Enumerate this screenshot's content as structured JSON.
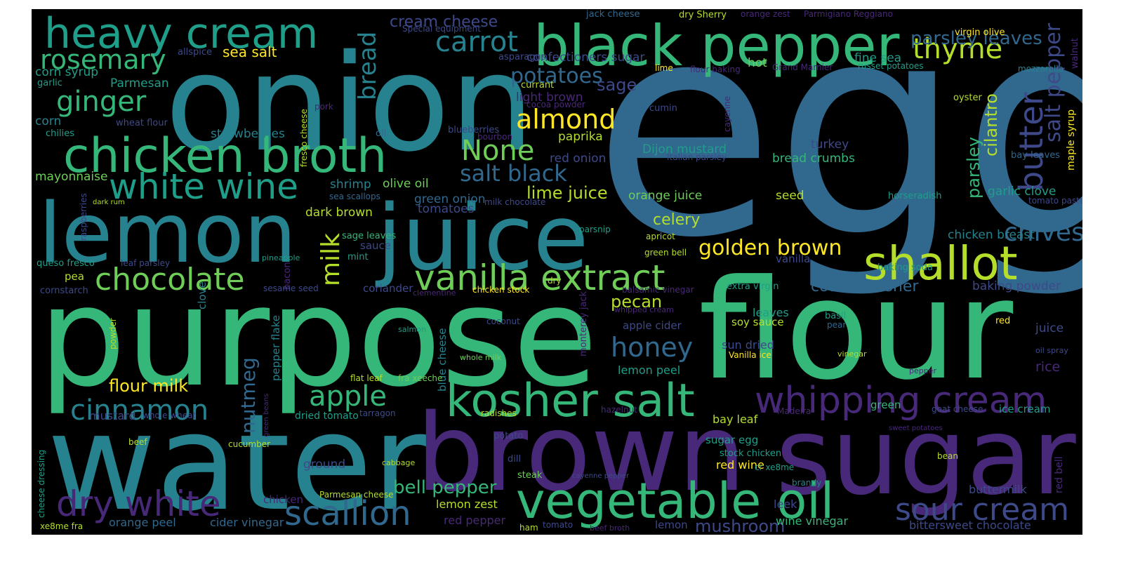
{
  "palette": {
    "background": "#000000",
    "colors": [
      "#440154",
      "#482878",
      "#3e4989",
      "#31688e",
      "#26828e",
      "#1f9e89",
      "#35b779",
      "#6ece58",
      "#b5de2b",
      "#fde725"
    ]
  },
  "words": [
    {
      "text": "egg",
      "color": "#31688e"
    },
    {
      "text": "onion",
      "color": "#26828e"
    },
    {
      "text": "purpose",
      "color": "#35b779"
    },
    {
      "text": "flour",
      "color": "#35b779"
    },
    {
      "text": "water",
      "color": "#26828e"
    },
    {
      "text": "lemon",
      "color": "#26828e"
    },
    {
      "text": "juice",
      "color": "#26828e"
    },
    {
      "text": "brown",
      "color": "#482878"
    },
    {
      "text": "sugar",
      "color": "#482878"
    },
    {
      "text": "black pepper",
      "color": "#35b779"
    },
    {
      "text": "heavy cream",
      "color": "#1f9e89"
    },
    {
      "text": "chicken broth",
      "color": "#35b779"
    },
    {
      "text": "vegetable oil",
      "color": "#35b779"
    },
    {
      "text": "kosher salt",
      "color": "#35b779"
    },
    {
      "text": "whipping cream",
      "color": "#482878"
    },
    {
      "text": "vanilla extract",
      "color": "#6ece58"
    },
    {
      "text": "white wine",
      "color": "#1f9e89"
    },
    {
      "text": "dry white",
      "color": "#482878"
    },
    {
      "text": "shallot",
      "color": "#b5de2b"
    },
    {
      "text": "chocolate",
      "color": "#6ece58"
    },
    {
      "text": "scallion",
      "color": "#31688e"
    },
    {
      "text": "sour cream",
      "color": "#3e4989"
    },
    {
      "text": "butter",
      "color": "#3e4989"
    },
    {
      "text": "rosemary",
      "color": "#35b779"
    },
    {
      "text": "ginger",
      "color": "#35b779"
    },
    {
      "text": "carrot",
      "color": "#26828e"
    },
    {
      "text": "thyme",
      "color": "#b5de2b"
    },
    {
      "text": "almond",
      "color": "#fde725"
    },
    {
      "text": "None",
      "color": "#6ece58"
    },
    {
      "text": "cinnamon",
      "color": "#26828e"
    },
    {
      "text": "apple",
      "color": "#35b779"
    },
    {
      "text": "honey",
      "color": "#31688e"
    },
    {
      "text": "chives",
      "color": "#31688e"
    },
    {
      "text": "golden brown",
      "color": "#fde725"
    },
    {
      "text": "salt black",
      "color": "#31688e"
    },
    {
      "text": "potatoes",
      "color": "#31688e"
    },
    {
      "text": "bread",
      "color": "#26828e"
    },
    {
      "text": "milk",
      "color": "#b5de2b"
    },
    {
      "text": "nutmeg",
      "color": "#31688e"
    },
    {
      "text": "salt pepper",
      "color": "#3e4989"
    },
    {
      "text": "cilantro",
      "color": "#b5de2b"
    },
    {
      "text": "parsley",
      "color": "#35b779"
    },
    {
      "text": "parsley leaves",
      "color": "#31688e"
    },
    {
      "text": "cream cheese",
      "color": "#3e4989"
    },
    {
      "text": "bell pepper",
      "color": "#35b779"
    },
    {
      "text": "flour milk",
      "color": "#fde725"
    },
    {
      "text": "mushroom",
      "color": "#3e4989"
    },
    {
      "text": "lime juice",
      "color": "#b5de2b"
    },
    {
      "text": "coarse kosher",
      "color": "#31688e"
    },
    {
      "text": "celery",
      "color": "#b5de2b"
    },
    {
      "text": "pecan",
      "color": "#b5de2b"
    },
    {
      "text": "sea salt",
      "color": "#fde725"
    },
    {
      "text": "sage",
      "color": "#3e4989"
    },
    {
      "text": "paprika",
      "color": "#b5de2b"
    },
    {
      "text": "light brown",
      "color": "#482878"
    },
    {
      "text": "red onion",
      "color": "#3e4989"
    },
    {
      "text": "Dijon mustard",
      "color": "#1f9e89"
    },
    {
      "text": "bread crumbs",
      "color": "#35b779"
    },
    {
      "text": "turkey",
      "color": "#3e4989"
    },
    {
      "text": "olive oil",
      "color": "#6ece58"
    },
    {
      "text": "green onion",
      "color": "#31688e"
    },
    {
      "text": "tomatoes",
      "color": "#3e4989"
    },
    {
      "text": "shrimp",
      "color": "#26828e"
    },
    {
      "text": "orange juice",
      "color": "#6ece58"
    },
    {
      "text": "seed",
      "color": "#b5de2b"
    },
    {
      "text": "chicken breast",
      "color": "#26828e"
    },
    {
      "text": "garlic clove",
      "color": "#1f9e89"
    },
    {
      "text": "baking powder",
      "color": "#3e4989"
    },
    {
      "text": "dark brown",
      "color": "#b5de2b"
    },
    {
      "text": "mayonnaise",
      "color": "#6ece58"
    },
    {
      "text": "strawberries",
      "color": "#26828e"
    },
    {
      "text": "confectioners sugar",
      "color": "#3e4989"
    },
    {
      "text": "asparagus",
      "color": "#3e4989"
    },
    {
      "text": "fine sea",
      "color": "#1f9e89"
    },
    {
      "text": "hot",
      "color": "#6ece58"
    },
    {
      "text": "lime",
      "color": "#fde725"
    },
    {
      "text": "flour baking",
      "color": "#482878"
    },
    {
      "text": "corn syrup",
      "color": "#1f9e89"
    },
    {
      "text": "corn",
      "color": "#26828e"
    },
    {
      "text": "Parmesan",
      "color": "#1f9e89"
    },
    {
      "text": "allspice",
      "color": "#3e4989"
    },
    {
      "text": "garlic",
      "color": "#1f9e89"
    },
    {
      "text": "wheat flour",
      "color": "#3e4989"
    },
    {
      "text": "chilies",
      "color": "#1f9e89"
    },
    {
      "text": "pork",
      "color": "#482878"
    },
    {
      "text": "fresco cheese",
      "color": "#b5de2b"
    },
    {
      "text": "currant",
      "color": "#b5de2b"
    },
    {
      "text": "cocoa powder",
      "color": "#482878"
    },
    {
      "text": "cumin",
      "color": "#3e4989"
    },
    {
      "text": "cayenne",
      "color": "#482878"
    },
    {
      "text": "oil",
      "color": "#31688e"
    },
    {
      "text": "blueberries",
      "color": "#3e4989"
    },
    {
      "text": "bourbon",
      "color": "#482878"
    },
    {
      "text": "jack cheese",
      "color": "#31688e"
    },
    {
      "text": "dry Sherry",
      "color": "#b5de2b"
    },
    {
      "text": "orange zest",
      "color": "#482878"
    },
    {
      "text": "Parmigiano Reggiano",
      "color": "#482878"
    },
    {
      "text": "Special equipment",
      "color": "#3e4989"
    },
    {
      "text": "virgin olive",
      "color": "#fde725"
    },
    {
      "text": "walnut",
      "color": "#482878"
    },
    {
      "text": "russet potatoes",
      "color": "#1f9e89"
    },
    {
      "text": "Grand Marnier",
      "color": "#482878"
    },
    {
      "text": "mozzarella",
      "color": "#26828e"
    },
    {
      "text": "oyster",
      "color": "#b5de2b"
    },
    {
      "text": "maple syrup",
      "color": "#fde725"
    },
    {
      "text": "bay leaves",
      "color": "#31688e"
    },
    {
      "text": "Italian parsley",
      "color": "#3e4989"
    },
    {
      "text": "horseradish",
      "color": "#1f9e89"
    },
    {
      "text": "tomato paste",
      "color": "#3e4989"
    },
    {
      "text": "raspberries",
      "color": "#3e4989"
    },
    {
      "text": "dark rum",
      "color": "#b5de2b"
    },
    {
      "text": "sea scallops",
      "color": "#31688e"
    },
    {
      "text": "milk chocolate",
      "color": "#3e4989"
    },
    {
      "text": "sage leaves",
      "color": "#35b779"
    },
    {
      "text": "sauce",
      "color": "#3e4989"
    },
    {
      "text": "mint",
      "color": "#1f9e89"
    },
    {
      "text": "parsnip",
      "color": "#1f9e89"
    },
    {
      "text": "apricot",
      "color": "#b5de2b"
    },
    {
      "text": "green bell",
      "color": "#b5de2b"
    },
    {
      "text": "vanilla",
      "color": "#3e4989"
    },
    {
      "text": "queso fresco",
      "color": "#1f9e89"
    },
    {
      "text": "leaf parsley",
      "color": "#3e4989"
    },
    {
      "text": "pea",
      "color": "#b5de2b"
    },
    {
      "text": "pineapple",
      "color": "#1f9e89"
    },
    {
      "text": "bacon",
      "color": "#482878"
    },
    {
      "text": "cornstarch",
      "color": "#3e4989"
    },
    {
      "text": "sesame seed",
      "color": "#3e4989"
    },
    {
      "text": "coriander",
      "color": "#3e4989"
    },
    {
      "text": "clementine",
      "color": "#482878"
    },
    {
      "text": "chicken stock",
      "color": "#fde725"
    },
    {
      "text": "dry",
      "color": "#b5de2b"
    },
    {
      "text": "balsamic vinegar",
      "color": "#482878"
    },
    {
      "text": "extra virgin",
      "color": "#1f9e89"
    },
    {
      "text": "baking soda",
      "color": "#1f9e89"
    },
    {
      "text": "clove",
      "color": "#26828e"
    },
    {
      "text": "pepper flake",
      "color": "#26828e"
    },
    {
      "text": "whipped cream",
      "color": "#482878"
    },
    {
      "text": "monterey jack",
      "color": "#482878"
    },
    {
      "text": "apple cider",
      "color": "#3e4989"
    },
    {
      "text": "leaves",
      "color": "#1f9e89"
    },
    {
      "text": "soy sauce",
      "color": "#b5de2b"
    },
    {
      "text": "basil",
      "color": "#1f9e89"
    },
    {
      "text": "pear",
      "color": "#31688e"
    },
    {
      "text": "red",
      "color": "#fde725"
    },
    {
      "text": "juice",
      "color": "#3e4989"
    },
    {
      "text": "powder",
      "color": "#b5de2b"
    },
    {
      "text": "salmon",
      "color": "#1f9e89"
    },
    {
      "text": "coconut",
      "color": "#3e4989"
    },
    {
      "text": "blue cheese",
      "color": "#26828e"
    },
    {
      "text": "sun dried",
      "color": "#3e4989"
    },
    {
      "text": "Vanilla ice",
      "color": "#fde725"
    },
    {
      "text": "vinegar",
      "color": "#b5de2b"
    },
    {
      "text": "oil spray",
      "color": "#3e4989"
    },
    {
      "text": "lemon peel",
      "color": "#1f9e89"
    },
    {
      "text": "pepper",
      "color": "#482878"
    },
    {
      "text": "rice",
      "color": "#482878"
    },
    {
      "text": "flat leaf",
      "color": "#b5de2b"
    },
    {
      "text": "fra xeeche",
      "color": "#6ece58"
    },
    {
      "text": "whole milk",
      "color": "#6ece58"
    },
    {
      "text": "mustard",
      "color": "#3e4989"
    },
    {
      "text": "green beans",
      "color": "#482878"
    },
    {
      "text": "whole wheat",
      "color": "#3e4989"
    },
    {
      "text": "dried tomato",
      "color": "#1f9e89"
    },
    {
      "text": "tarragon",
      "color": "#3e4989"
    },
    {
      "text": "radishes",
      "color": "#b5de2b"
    },
    {
      "text": "hazelnut",
      "color": "#482878"
    },
    {
      "text": "Madeira",
      "color": "#482878"
    },
    {
      "text": "green",
      "color": "#35b779"
    },
    {
      "text": "goat cheese",
      "color": "#3e4989"
    },
    {
      "text": "ice cream",
      "color": "#1f9e89"
    },
    {
      "text": "sweet potatoes",
      "color": "#482878"
    },
    {
      "text": "bay leaf",
      "color": "#b5de2b"
    },
    {
      "text": "sugar egg",
      "color": "#1f9e89"
    },
    {
      "text": "stock chicken",
      "color": "#1f9e89"
    },
    {
      "text": "red wine",
      "color": "#fde725"
    },
    {
      "text": "cr xe8me",
      "color": "#1f9e89"
    },
    {
      "text": "brandy",
      "color": "#26828e"
    },
    {
      "text": "bean",
      "color": "#b5de2b"
    },
    {
      "text": "red bell",
      "color": "#482878"
    },
    {
      "text": "buttermilk",
      "color": "#3e4989"
    },
    {
      "text": "beef",
      "color": "#b5de2b"
    },
    {
      "text": "cucumber",
      "color": "#b5de2b"
    },
    {
      "text": "cheese dressing",
      "color": "#1f9e89"
    },
    {
      "text": "chicken",
      "color": "#482878"
    },
    {
      "text": "Parmesan cheese",
      "color": "#b5de2b"
    },
    {
      "text": "potato",
      "color": "#3e4989"
    },
    {
      "text": "dill",
      "color": "#3e4989"
    },
    {
      "text": "steak",
      "color": "#6ece58"
    },
    {
      "text": "cayenne pepper",
      "color": "#3e4989"
    },
    {
      "text": "cabbage",
      "color": "#b5de2b"
    },
    {
      "text": "ground",
      "color": "#3e4989"
    },
    {
      "text": "lemon zest",
      "color": "#b5de2b"
    },
    {
      "text": "red pepper",
      "color": "#482878"
    },
    {
      "text": "leek",
      "color": "#3e4989"
    },
    {
      "text": "wine vinegar",
      "color": "#35b779"
    },
    {
      "text": "lemon",
      "color": "#3e4989"
    },
    {
      "text": "orange peel",
      "color": "#31688e"
    },
    {
      "text": "cider vinegar",
      "color": "#31688e"
    },
    {
      "text": "xe8me fra",
      "color": "#b5de2b"
    },
    {
      "text": "ham",
      "color": "#b5de2b"
    },
    {
      "text": "tomato",
      "color": "#3e4989"
    },
    {
      "text": "beef broth",
      "color": "#482878"
    },
    {
      "text": "bittersweet chocolate",
      "color": "#3e4989"
    }
  ]
}
